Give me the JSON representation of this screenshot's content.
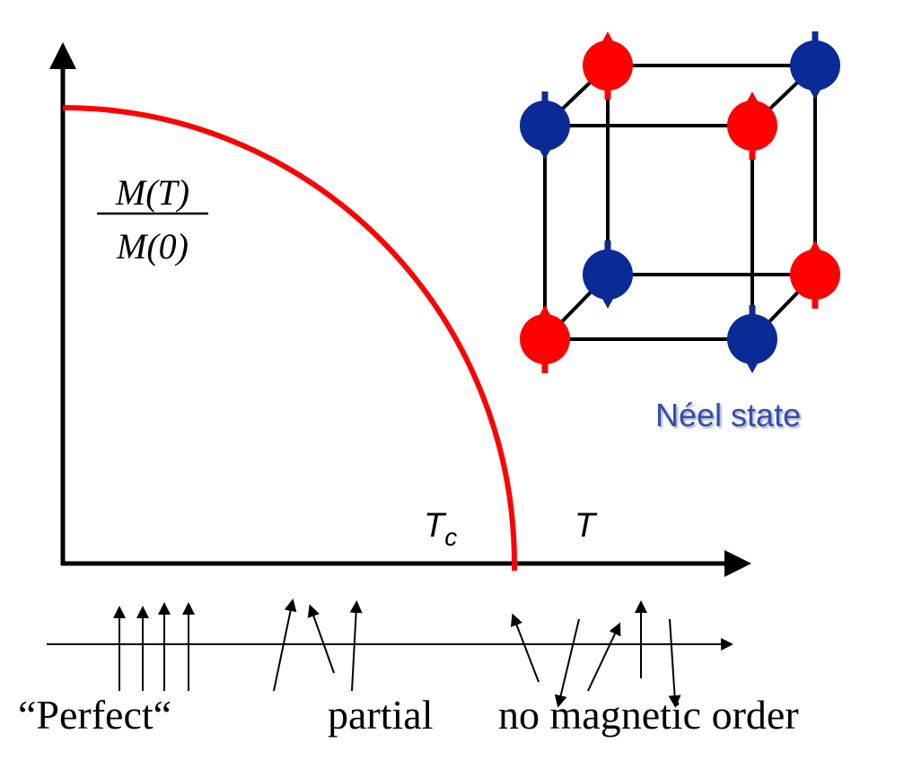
{
  "labels": {
    "ratio_numerator": "M(T)",
    "ratio_denominator": "M(0)",
    "tc_symbol": "T",
    "tc_subscript": "c",
    "temperature_axis": "T",
    "neel_caption": "Néel state",
    "perfect_caption": "“Perfect“",
    "partial_caption": "partial",
    "disorder_caption": "no magnetic order"
  }
}
